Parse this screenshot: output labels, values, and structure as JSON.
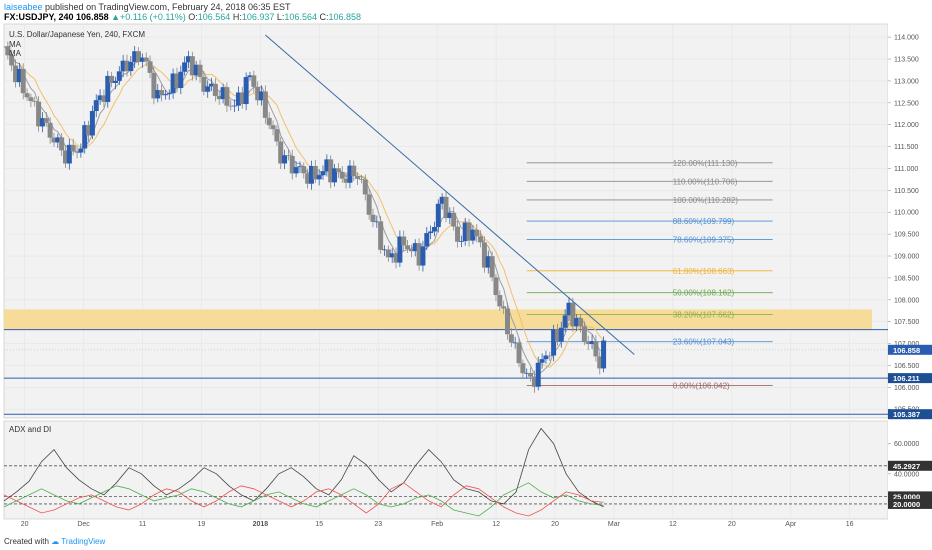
{
  "header": {
    "author": "laiseabee",
    "published": " published on TradingView.com, February 24, 2018 06:35 EST",
    "symbol": "FX:USDJPY, 240",
    "last": "106.858",
    "change": "+0.116 (+0.11%)",
    "o_label": "O:",
    "o": "106.564",
    "h_label": "H:",
    "h": "106.937",
    "l_label": "L:",
    "l": "106.564",
    "c_label": "C:",
    "c": "106.858"
  },
  "legend": {
    "instrument": "U.S. Dollar/Japanese Yen, 240, FXCM",
    "ma1": "MA",
    "ma2": "MA"
  },
  "footer": {
    "created": "Created with",
    "brand": "TradingView"
  },
  "colors": {
    "up_candle": "#2a5db0",
    "down_candle": "#888888",
    "ma_orange": "#f2c069",
    "ma_gray": "#9e9e9e",
    "zone": "#f6d98e",
    "trendline": "#3a6aa8",
    "adx": "#444444",
    "di_plus": "#4caf50",
    "di_minus": "#ef5350"
  },
  "chart_data": [
    {
      "type": "candlestick",
      "title": "U.S. Dollar/Japanese Yen, 240, FXCM",
      "ylim": [
        105.3,
        114.3
      ],
      "y_ticks": [
        "114.000",
        "113.500",
        "113.000",
        "112.500",
        "112.000",
        "111.500",
        "111.000",
        "110.500",
        "110.000",
        "109.500",
        "109.000",
        "108.500",
        "108.000",
        "107.500",
        "107.000",
        "106.500",
        "106.000",
        "105.500"
      ],
      "x_ticks": [
        "20",
        "Dec",
        "11",
        "19",
        "2018",
        "15",
        "23",
        "Feb",
        "12",
        "20",
        "Mar",
        "12",
        "20",
        "Apr",
        "16"
      ],
      "price_path": [
        {
          "t": 0,
          "p": 113.7
        },
        {
          "t": 4,
          "p": 113.0
        },
        {
          "t": 9,
          "p": 112.2
        },
        {
          "t": 12,
          "p": 111.8
        },
        {
          "t": 16,
          "p": 111.3
        },
        {
          "t": 20,
          "p": 111.5
        },
        {
          "t": 24,
          "p": 112.5
        },
        {
          "t": 28,
          "p": 113.0
        },
        {
          "t": 32,
          "p": 113.4
        },
        {
          "t": 36,
          "p": 113.6
        },
        {
          "t": 40,
          "p": 112.6
        },
        {
          "t": 44,
          "p": 112.9
        },
        {
          "t": 48,
          "p": 113.5
        },
        {
          "t": 52,
          "p": 112.9
        },
        {
          "t": 56,
          "p": 112.7
        },
        {
          "t": 60,
          "p": 112.4
        },
        {
          "t": 64,
          "p": 113.1
        },
        {
          "t": 68,
          "p": 112.3
        },
        {
          "t": 72,
          "p": 111.3
        },
        {
          "t": 76,
          "p": 111.0
        },
        {
          "t": 80,
          "p": 110.8
        },
        {
          "t": 84,
          "p": 111.0
        },
        {
          "t": 88,
          "p": 110.8
        },
        {
          "t": 92,
          "p": 110.9
        },
        {
          "t": 96,
          "p": 109.8
        },
        {
          "t": 100,
          "p": 108.9
        },
        {
          "t": 104,
          "p": 109.3
        },
        {
          "t": 108,
          "p": 109.0
        },
        {
          "t": 112,
          "p": 109.8
        },
        {
          "t": 114,
          "p": 110.3
        },
        {
          "t": 118,
          "p": 109.4
        },
        {
          "t": 122,
          "p": 109.6
        },
        {
          "t": 126,
          "p": 108.8
        },
        {
          "t": 130,
          "p": 107.6
        },
        {
          "t": 134,
          "p": 106.6
        },
        {
          "t": 137,
          "p": 106.1
        },
        {
          "t": 140,
          "p": 106.6
        },
        {
          "t": 144,
          "p": 107.2
        },
        {
          "t": 147,
          "p": 107.8
        },
        {
          "t": 150,
          "p": 107.3
        },
        {
          "t": 153,
          "p": 106.9
        },
        {
          "t": 155,
          "p": 106.6
        },
        {
          "t": 156,
          "p": 106.858
        }
      ],
      "fib_levels": [
        {
          "label": "120.00%(111.130)",
          "value": 111.13,
          "color": "#8a8a8a"
        },
        {
          "label": "110.00%(110.706)",
          "value": 110.706,
          "color": "#8a8a8a"
        },
        {
          "label": "100.00%(110.282)",
          "value": 110.282,
          "color": "#8a8a8a"
        },
        {
          "label": "88.60%(109.799)",
          "value": 109.799,
          "color": "#4f8fd6"
        },
        {
          "label": "78.60%(109.375)",
          "value": 109.375,
          "color": "#4f8fd6"
        },
        {
          "label": "61.80%(108.663)",
          "value": 108.663,
          "color": "#f2b134"
        },
        {
          "label": "50.00%(108.162)",
          "value": 108.162,
          "color": "#6aa84f"
        },
        {
          "label": "38.20%(107.662)",
          "value": 107.662,
          "color": "#8cb04c"
        },
        {
          "label": "23.60%(107.043)",
          "value": 107.043,
          "color": "#4f8fd6"
        },
        {
          "label": "0.00%(106.042)",
          "value": 106.042,
          "color": "#9a6a6a"
        }
      ],
      "zone": {
        "low": 107.32,
        "high": 107.78
      },
      "horizontal_lines": [
        {
          "label": "106.211",
          "value": 106.211
        },
        {
          "label": "105.387",
          "value": 105.387
        }
      ],
      "last_price": {
        "label": "106.858",
        "value": 106.858
      },
      "trendline": [
        {
          "t": 68,
          "p": 114.05
        },
        {
          "t": 164,
          "p": 106.75
        }
      ]
    },
    {
      "type": "line",
      "title": "ADX and DI",
      "ylim": [
        10,
        75
      ],
      "y_ticks": [
        "60.0000",
        "45.2927",
        "40.0000",
        "25.0000",
        "20.0000"
      ],
      "hlines": [
        45.2927,
        25.0,
        20.0
      ],
      "series": [
        {
          "name": "",
          "color": "#444444",
          "values": [
            22,
            28,
            35,
            48,
            56,
            44,
            36,
            30,
            26,
            34,
            44,
            40,
            32,
            26,
            30,
            36,
            44,
            40,
            32,
            26,
            22,
            30,
            40,
            44,
            38,
            30,
            26,
            36,
            52,
            46,
            36,
            28,
            34,
            46,
            56,
            48,
            36,
            30,
            28,
            22,
            20,
            28,
            56,
            70,
            60,
            40,
            28,
            22,
            18
          ]
        },
        {
          "name": "",
          "color": "#4caf50",
          "values": [
            18,
            22,
            26,
            30,
            26,
            22,
            20,
            24,
            28,
            32,
            30,
            26,
            22,
            24,
            26,
            30,
            28,
            24,
            20,
            18,
            22,
            26,
            28,
            24,
            20,
            18,
            22,
            26,
            30,
            26,
            20,
            18,
            20,
            24,
            26,
            22,
            16,
            14,
            12,
            18,
            26,
            30,
            34,
            28,
            24,
            26,
            22,
            20,
            19
          ]
        },
        {
          "name": "",
          "color": "#ef5350",
          "values": [
            26,
            22,
            18,
            14,
            16,
            20,
            24,
            26,
            22,
            18,
            16,
            20,
            26,
            30,
            28,
            22,
            18,
            22,
            28,
            32,
            30,
            26,
            22,
            18,
            22,
            28,
            30,
            26,
            20,
            14,
            20,
            30,
            34,
            28,
            22,
            18,
            26,
            32,
            30,
            24,
            18,
            14,
            12,
            16,
            22,
            28,
            26,
            22,
            21
          ]
        }
      ]
    }
  ]
}
